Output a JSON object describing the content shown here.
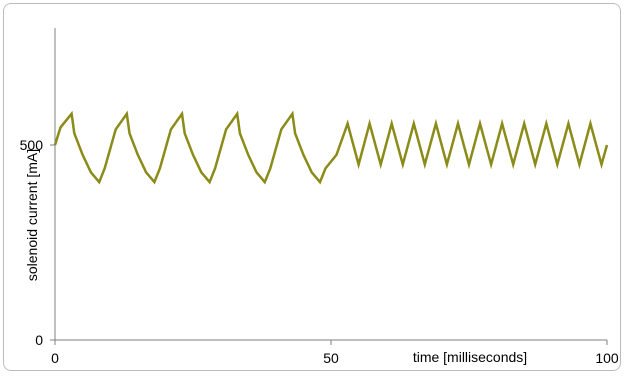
{
  "chart_data": {
    "type": "line",
    "title": "",
    "xlabel": "time [milliseconds]",
    "ylabel": "solenoid current [mA]",
    "xlim": [
      0,
      100
    ],
    "ylim": [
      0,
      800
    ],
    "x_ticks": [
      {
        "value": 0,
        "label": "0"
      },
      {
        "value": 50,
        "label": "50"
      },
      {
        "value": 100,
        "label": "100"
      }
    ],
    "y_ticks": [
      {
        "value": 0,
        "label": "0"
      },
      {
        "value": 500,
        "label": "500"
      }
    ],
    "grid": false,
    "legend": "none",
    "line_color": "#8B8B1A",
    "series": [
      {
        "x": [
          0,
          1,
          3,
          3.5,
          5,
          6.5,
          8,
          9,
          11,
          13,
          13.5,
          15,
          16.5,
          18,
          19,
          21,
          23,
          23.5,
          25,
          26.5,
          28,
          29,
          31,
          33,
          33.5,
          35,
          36.5,
          38,
          39,
          41,
          43,
          43.5,
          45,
          46.5,
          48,
          49,
          51,
          53,
          55,
          57,
          59,
          61,
          63,
          65,
          67,
          69,
          71,
          73,
          75,
          77,
          79,
          81,
          83,
          85,
          87,
          89,
          91,
          93,
          95,
          97,
          99,
          100
        ],
        "values": [
          500,
          545,
          580,
          530,
          475,
          430,
          405,
          440,
          540,
          580,
          530,
          475,
          430,
          405,
          440,
          540,
          580,
          530,
          475,
          430,
          405,
          440,
          540,
          580,
          530,
          475,
          430,
          405,
          440,
          540,
          580,
          530,
          475,
          430,
          405,
          440,
          475,
          555,
          450,
          555,
          450,
          555,
          450,
          555,
          450,
          555,
          450,
          555,
          450,
          555,
          450,
          555,
          450,
          555,
          450,
          555,
          450,
          555,
          450,
          555,
          450,
          500
        ]
      }
    ]
  }
}
